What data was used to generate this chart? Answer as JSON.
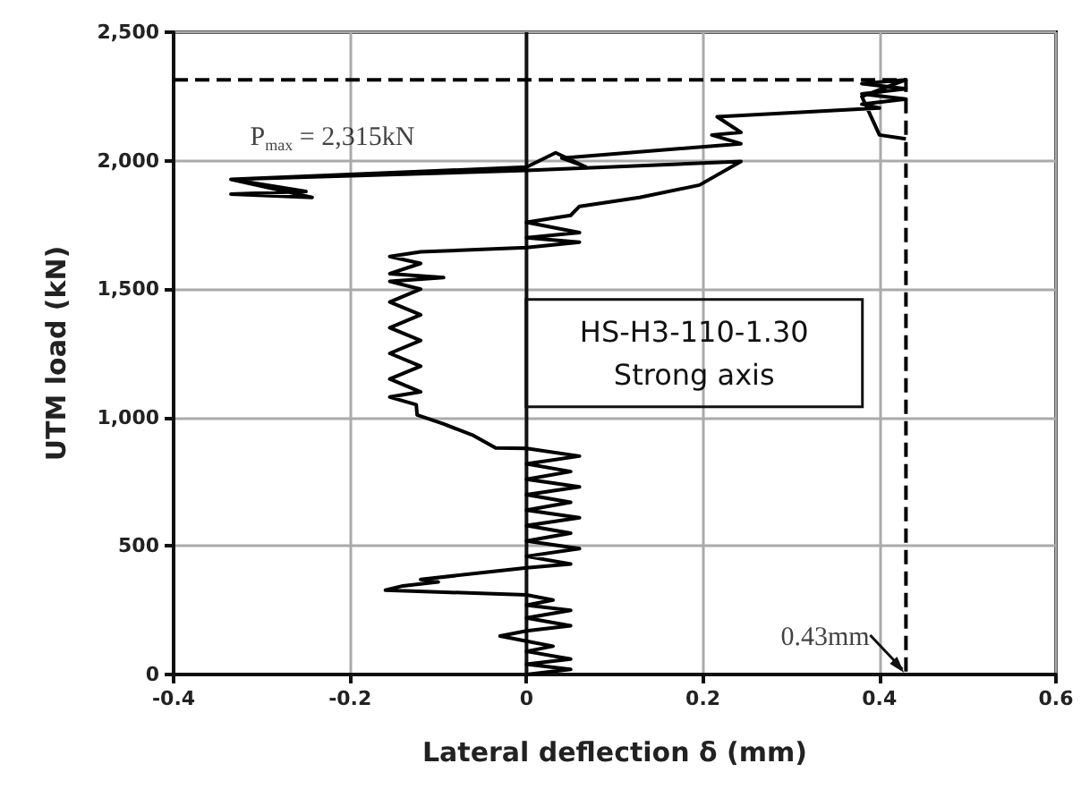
{
  "chart_data": {
    "type": "line",
    "xlabel": "Lateral deflection δ (mm)",
    "ylabel": "UTM load (kN)",
    "xlim": [
      -0.4,
      0.6
    ],
    "xticks": [
      -0.4,
      -0.2,
      0,
      0.2,
      0.4,
      0.6
    ],
    "ylim": [
      0,
      2500
    ],
    "yticks": [
      0,
      500,
      {
        "value": 1000,
        "label": "1,000"
      },
      {
        "value": 1500,
        "label": "1,500"
      },
      {
        "value": 2000,
        "label": "2,000"
      },
      {
        "value": 2500,
        "label": "2,500"
      }
    ],
    "grid": true,
    "marker": "none",
    "series": [
      {
        "color": "#000000",
        "line_style": "solid",
        "x": [
          0,
          0.05,
          0,
          0.05,
          0,
          0.03,
          0,
          -0.03,
          0,
          0.05,
          0,
          0.05,
          0,
          0.03,
          0,
          -0.16,
          -0.14,
          -0.1,
          -0.12,
          0,
          0.05,
          0,
          0.06,
          0,
          0.05,
          0,
          0.06,
          0,
          0.05,
          0,
          0.06,
          0,
          0.05,
          0,
          0.06,
          0,
          -0.035,
          -0.06,
          -0.094,
          -0.124,
          -0.125,
          -0.155,
          -0.12,
          -0.155,
          -0.12,
          -0.155,
          -0.12,
          -0.155,
          -0.12,
          -0.155,
          -0.12,
          -0.155,
          -0.094,
          -0.155,
          -0.12,
          -0.155,
          -0.12,
          0,
          0.06,
          0,
          0.06,
          0,
          0.05,
          0.06,
          0.128,
          0.196,
          0.243,
          0,
          -0.335,
          -0.243,
          -0.335,
          -0.25,
          -0.335,
          0,
          0.033,
          0.067,
          0.04,
          0.243,
          0.21,
          0.243,
          0.216,
          0.4,
          0.38,
          0.43,
          0.38,
          0.43,
          0.38,
          0.43,
          0.38,
          0.4,
          0.43
        ],
        "values": [
          0,
          20,
          40,
          60,
          90,
          110,
          130,
          150,
          170,
          190,
          220,
          250,
          270,
          290,
          310,
          328,
          345,
          360,
          370,
          415,
          430,
          460,
          490,
          520,
          550,
          580,
          610,
          640,
          670,
          700,
          730,
          760,
          790,
          820,
          850,
          880,
          882,
          930,
          975,
          1010,
          1050,
          1080,
          1100,
          1150,
          1200,
          1250,
          1300,
          1350,
          1400,
          1450,
          1500,
          1530,
          1545,
          1560,
          1600,
          1627,
          1645,
          1662,
          1683,
          1700,
          1720,
          1760,
          1787,
          1822,
          1857,
          1905,
          1997,
          1962,
          1927,
          1857,
          1870,
          1880,
          1927,
          1975,
          2031,
          1976,
          2010,
          2066,
          2100,
          2110,
          2171,
          2205,
          2220,
          2240,
          2260,
          2280,
          2300,
          2315,
          2250,
          2100,
          2085
        ]
      },
      {
        "color": "#000000",
        "line_style": "dashed",
        "x": [
          -0.4,
          0.43,
          0.43
        ],
        "values": [
          2315,
          2315,
          0
        ]
      }
    ],
    "annotations": [
      {
        "text": "P$_{max}$ = 2,315kN",
        "x": -0.22,
        "y": 2315
      },
      {
        "text": "0.43mm",
        "x": 0.43,
        "y": 0
      },
      "HS-H3-110-1.30",
      "Strong axis"
    ]
  }
}
